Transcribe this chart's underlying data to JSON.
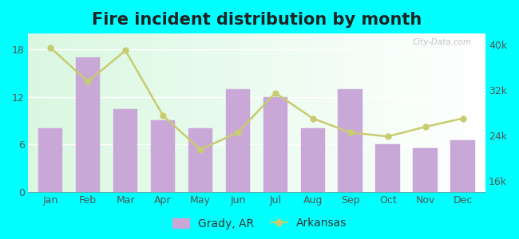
{
  "title": "Fire incident distribution by month",
  "months": [
    "Jan",
    "Feb",
    "Mar",
    "Apr",
    "May",
    "Jun",
    "Jul",
    "Aug",
    "Sep",
    "Oct",
    "Nov",
    "Dec"
  ],
  "grady_values": [
    8,
    17,
    10.5,
    9,
    8,
    13,
    12,
    8,
    13,
    6,
    5.5,
    6.5
  ],
  "arkansas_values": [
    39500,
    33500,
    39000,
    27500,
    21500,
    24500,
    31500,
    27000,
    24500,
    23800,
    25500,
    27000
  ],
  "bar_color": "#c9a8d8",
  "bar_edge_color": "#c9a8d8",
  "line_color": "#c8cc70",
  "line_marker_color": "#c8cc70",
  "bg_left_color": "#d8f5d8",
  "bg_right_color": "#f0fff8",
  "outer_background": "#00ffff",
  "left_ylim": [
    0,
    20
  ],
  "left_yticks": [
    0,
    6,
    12,
    18
  ],
  "right_ylim": [
    14000,
    42000
  ],
  "right_yticks": [
    16000,
    24000,
    32000,
    40000
  ],
  "right_yticklabels": [
    "16k",
    "24k",
    "32k",
    "40k"
  ],
  "title_fontsize": 15,
  "tick_fontsize": 9,
  "legend_fontsize": 10,
  "watermark": "City-Data.com"
}
